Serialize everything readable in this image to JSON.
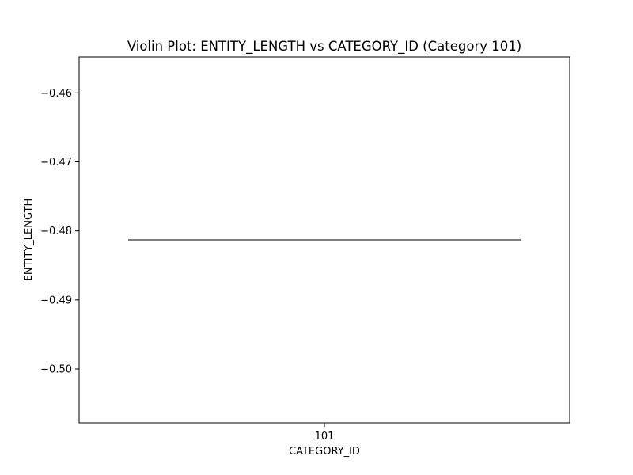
{
  "chart_data": {
    "type": "violin",
    "title": "Violin Plot: ENTITY_LENGTH vs CATEGORY_ID (Category 101)",
    "xlabel": "CATEGORY_ID",
    "ylabel": "ENTITY_LENGTH",
    "categories": [
      "101"
    ],
    "series": [
      {
        "category": "101",
        "values": [
          -0.4813
        ]
      }
    ],
    "ylim": [
      -0.5078,
      -0.4548
    ],
    "yticks": [
      -0.46,
      -0.47,
      -0.48,
      -0.49,
      -0.5
    ],
    "ytick_labels": [
      "−0.46",
      "−0.47",
      "−0.48",
      "−0.49",
      "−0.50"
    ],
    "grid": false,
    "legend": "none",
    "colors": {
      "frame": "#000000",
      "violin_line": "#333333"
    }
  }
}
